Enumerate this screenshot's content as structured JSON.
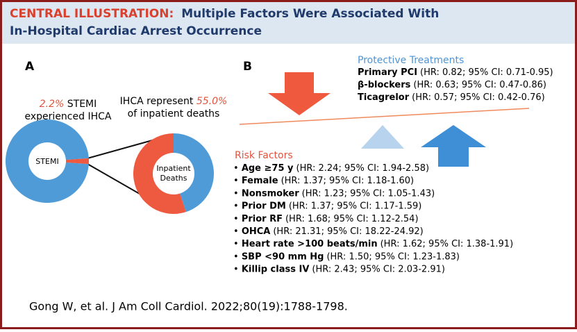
{
  "header": {
    "label": "CENTRAL ILLUSTRATION:",
    "title_line1": "Multiple Factors Were Associated With",
    "title_line2": "In-Hospital Cardiac Arrest Occurrence"
  },
  "panel_a": {
    "label": "A",
    "stemi": {
      "value": 2.2,
      "value_label": "2.2%",
      "text_after": "STEMI",
      "text_line2": "experienced IHCA",
      "center_label": "STEMI"
    },
    "deaths": {
      "text_before": "IHCA represent",
      "value": 55.0,
      "value_label": "55.0%",
      "text_line2": "of inpatient deaths",
      "center_label": [
        "Inpatient",
        "Deaths"
      ]
    }
  },
  "panel_b": {
    "label": "B",
    "protective_title": "Protective Treatments",
    "protective": [
      {
        "name": "Primary PCI",
        "stat": "(HR: 0.82; 95% CI: 0.71-0.95)"
      },
      {
        "name": "β-blockers",
        "stat": "(HR: 0.63; 95% CI: 0.47-0.86)"
      },
      {
        "name": "Ticagrelor",
        "stat": "(HR: 0.57; 95% CI: 0.42-0.76)"
      }
    ],
    "risk_title": "Risk Factors",
    "risk": [
      {
        "name": "Age ≥75 y",
        "stat": "(HR: 2.24; 95% CI: 1.94-2.58)"
      },
      {
        "name": "Female",
        "stat": "(HR: 1.37; 95% CI: 1.18-1.60)"
      },
      {
        "name": "Nonsmoker",
        "stat": "(HR: 1.23; 95% CI: 1.05-1.43)"
      },
      {
        "name": "Prior DM",
        "stat": "(HR: 1.37; 95% CI: 1.17-1.59)"
      },
      {
        "name": "Prior RF",
        "stat": "(HR: 1.68; 95% CI: 1.12-2.54)"
      },
      {
        "name": "OHCA",
        "stat": "(HR: 21.31; 95% CI: 18.22-24.92)"
      },
      {
        "name": "Heart rate >100 beats/min",
        "stat": "(HR: 1.62; 95% CI: 1.38-1.91)"
      },
      {
        "name": "SBP <90 mm Hg",
        "stat": "(HR: 1.50; 95% CI: 1.23-1.83)"
      },
      {
        "name": "Killip class IV",
        "stat": "(HR: 2.43; 95% CI: 2.03-2.91)"
      }
    ]
  },
  "citation": "Gong W, et al. J Am Coll Cardiol. 2022;80(19):1788-1798."
}
